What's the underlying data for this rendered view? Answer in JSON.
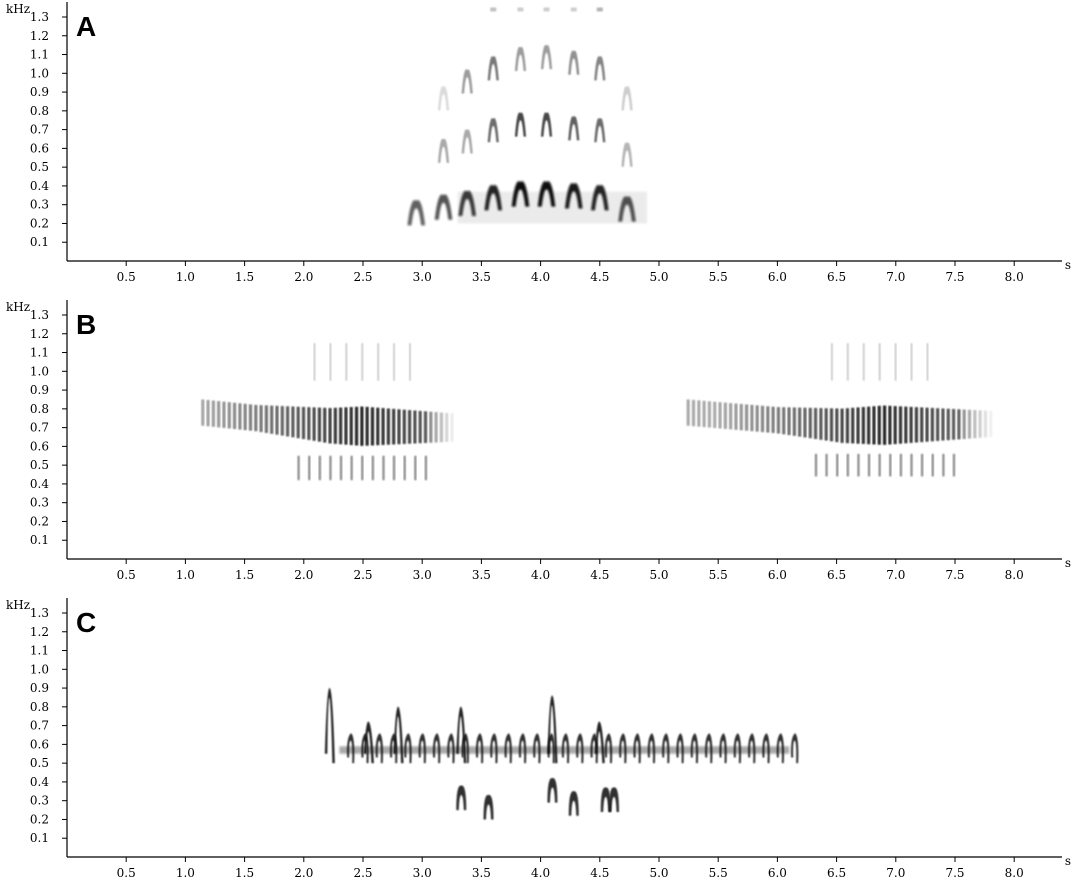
{
  "chart_data": [
    {
      "type": "spectrogram",
      "panel_label": "A",
      "y_unit": "kHz",
      "x_unit": "s",
      "x_ticks": [
        "0.5",
        "1.0",
        "1.5",
        "2.0",
        "2.5",
        "3.0",
        "3.5",
        "4.0",
        "4.5",
        "5.0",
        "5.5",
        "6.0",
        "6.5",
        "7.0",
        "7.5",
        "8.0"
      ],
      "y_ticks": [
        "0.1",
        "0.2",
        "0.3",
        "0.4",
        "0.5",
        "0.6",
        "0.7",
        "0.8",
        "0.9",
        "1.0",
        "1.1",
        "1.2",
        "1.3"
      ],
      "xlim": [
        0,
        8.45
      ],
      "ylim": [
        0,
        1.35
      ],
      "grid": false,
      "color": "#111111",
      "notes": [
        {
          "t": 2.95,
          "f": 0.25,
          "i": 0.65
        },
        {
          "t": 3.18,
          "f": 0.28,
          "i": 0.7
        },
        {
          "t": 3.38,
          "f": 0.3,
          "i": 0.8
        },
        {
          "t": 3.6,
          "f": 0.33,
          "i": 0.9
        },
        {
          "t": 3.83,
          "f": 0.35,
          "i": 1.0
        },
        {
          "t": 4.05,
          "f": 0.35,
          "i": 1.0
        },
        {
          "t": 4.28,
          "f": 0.34,
          "i": 0.95
        },
        {
          "t": 4.5,
          "f": 0.33,
          "i": 0.9
        },
        {
          "t": 4.73,
          "f": 0.27,
          "i": 0.7
        }
      ],
      "harmonics": [
        {
          "t": 3.18,
          "f": 0.58,
          "i": 0.35
        },
        {
          "t": 3.38,
          "f": 0.63,
          "i": 0.35
        },
        {
          "t": 3.6,
          "f": 0.69,
          "i": 0.6
        },
        {
          "t": 3.83,
          "f": 0.72,
          "i": 0.75
        },
        {
          "t": 4.05,
          "f": 0.72,
          "i": 0.75
        },
        {
          "t": 4.28,
          "f": 0.7,
          "i": 0.65
        },
        {
          "t": 4.5,
          "f": 0.69,
          "i": 0.6
        },
        {
          "t": 4.73,
          "f": 0.56,
          "i": 0.3
        },
        {
          "t": 3.18,
          "f": 0.86,
          "i": 0.15
        },
        {
          "t": 3.38,
          "f": 0.95,
          "i": 0.4
        },
        {
          "t": 3.6,
          "f": 1.02,
          "i": 0.55
        },
        {
          "t": 3.83,
          "f": 1.07,
          "i": 0.4
        },
        {
          "t": 4.05,
          "f": 1.08,
          "i": 0.4
        },
        {
          "t": 4.28,
          "f": 1.05,
          "i": 0.45
        },
        {
          "t": 4.5,
          "f": 1.02,
          "i": 0.5
        },
        {
          "t": 4.73,
          "f": 0.86,
          "i": 0.2
        },
        {
          "t": 3.6,
          "f": 1.34,
          "i": 0.25
        },
        {
          "t": 3.83,
          "f": 1.34,
          "i": 0.2
        },
        {
          "t": 4.05,
          "f": 1.34,
          "i": 0.2
        },
        {
          "t": 4.28,
          "f": 1.34,
          "i": 0.2
        },
        {
          "t": 4.5,
          "f": 1.34,
          "i": 0.3
        }
      ]
    },
    {
      "type": "spectrogram",
      "panel_label": "B",
      "y_unit": "kHz",
      "x_unit": "s",
      "x_ticks": [
        "0.5",
        "1.0",
        "1.5",
        "2.0",
        "2.5",
        "3.0",
        "3.5",
        "4.0",
        "4.5",
        "5.0",
        "5.5",
        "6.0",
        "6.5",
        "7.0",
        "7.5",
        "8.0"
      ],
      "y_ticks": [
        "0.1",
        "0.2",
        "0.3",
        "0.4",
        "0.5",
        "0.6",
        "0.7",
        "0.8",
        "0.9",
        "1.0",
        "1.1",
        "1.2",
        "1.3"
      ],
      "xlim": [
        0,
        8.45
      ],
      "ylim": [
        0,
        1.35
      ],
      "grid": false,
      "color": "#111111",
      "songs": [
        {
          "start": 1.15,
          "end": 3.3,
          "f_start": 0.78,
          "f_mid": 0.71,
          "f_end": 0.7,
          "width_peak": 2.5,
          "band_half": 0.07,
          "sub_lo": 0.42,
          "sub_hi": 0.55,
          "upper_lo": 0.95,
          "upper_hi": 1.15
        },
        {
          "start": 5.25,
          "end": 7.85,
          "f_start": 0.78,
          "f_mid": 0.71,
          "f_end": 0.72,
          "width_peak": 6.9,
          "band_half": 0.07,
          "sub_lo": 0.44,
          "sub_hi": 0.56,
          "upper_lo": 0.95,
          "upper_hi": 1.15
        }
      ]
    },
    {
      "type": "spectrogram",
      "panel_label": "C",
      "y_unit": "kHz",
      "x_unit": "s",
      "x_ticks": [
        "0.5",
        "1.0",
        "1.5",
        "2.0",
        "2.5",
        "3.0",
        "3.5",
        "4.0",
        "4.5",
        "5.0",
        "5.5",
        "6.0",
        "6.5",
        "7.0",
        "7.5",
        "8.0"
      ],
      "y_ticks": [
        "0.1",
        "0.2",
        "0.3",
        "0.4",
        "0.5",
        "0.6",
        "0.7",
        "0.8",
        "0.9",
        "1.0",
        "1.1",
        "1.2",
        "1.3"
      ],
      "xlim": [
        0,
        8.45
      ],
      "ylim": [
        0,
        1.35
      ],
      "grid": false,
      "color": "#111111",
      "trill": {
        "start": 2.4,
        "end": 6.15,
        "f_base": 0.56,
        "f_top": 0.64,
        "count": 32
      },
      "peaks": [
        {
          "t": 2.22,
          "f": 0.9
        },
        {
          "t": 2.55,
          "f": 0.72
        },
        {
          "t": 2.8,
          "f": 0.8
        },
        {
          "t": 3.33,
          "f": 0.8
        },
        {
          "t": 4.1,
          "f": 0.86
        },
        {
          "t": 4.5,
          "f": 0.72
        }
      ],
      "low_notes": [
        {
          "t": 3.33,
          "f": 0.33
        },
        {
          "t": 3.56,
          "f": 0.28
        },
        {
          "t": 4.1,
          "f": 0.37
        },
        {
          "t": 4.28,
          "f": 0.3
        },
        {
          "t": 4.55,
          "f": 0.32
        },
        {
          "t": 4.62,
          "f": 0.32
        }
      ]
    }
  ]
}
